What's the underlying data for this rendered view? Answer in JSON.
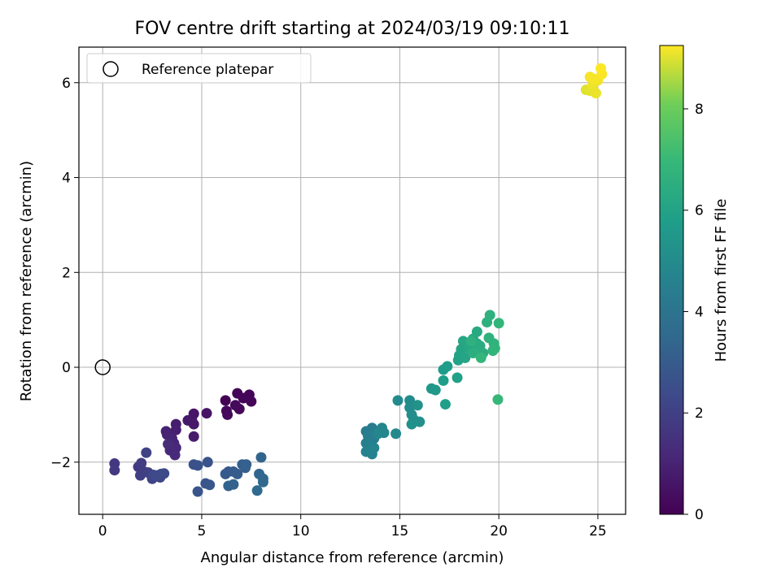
{
  "chart_data": {
    "type": "scatter",
    "title": "FOV centre drift starting at 2024/03/19 09:10:11",
    "xlabel": "Angular distance from reference (arcmin)",
    "ylabel": "Rotation from reference (arcmin)",
    "xlim": [
      -1.2,
      26.4
    ],
    "ylim": [
      -3.1,
      6.75
    ],
    "xticks": [
      0,
      5,
      10,
      15,
      20,
      25
    ],
    "yticks": [
      -2,
      0,
      2,
      4,
      6
    ],
    "xtick_labels": [
      "0",
      "5",
      "10",
      "15",
      "20",
      "25"
    ],
    "ytick_labels": [
      "−2",
      "0",
      "2",
      "4",
      "6"
    ],
    "grid": true,
    "legend": {
      "placement": "top-left",
      "label": "Reference platepar"
    },
    "reference_point": {
      "x": 0,
      "y": 0
    },
    "colorbar": {
      "label": "Hours from first FF file",
      "colormap": "viridis",
      "range": [
        0,
        9.25
      ],
      "ticks": [
        0,
        2,
        4,
        6,
        8
      ],
      "tick_labels": [
        "0",
        "2",
        "4",
        "6",
        "8"
      ]
    },
    "points": [
      {
        "x": 6.2,
        "y": -0.7,
        "t": 0.0
      },
      {
        "x": 6.8,
        "y": -0.55,
        "t": 0.05
      },
      {
        "x": 7.1,
        "y": -0.65,
        "t": 0.1
      },
      {
        "x": 7.4,
        "y": -0.58,
        "t": 0.12
      },
      {
        "x": 7.5,
        "y": -0.72,
        "t": 0.15
      },
      {
        "x": 6.9,
        "y": -0.88,
        "t": 0.2
      },
      {
        "x": 6.25,
        "y": -0.92,
        "t": 0.22
      },
      {
        "x": 6.3,
        "y": -1.0,
        "t": 0.25
      },
      {
        "x": 6.7,
        "y": -0.8,
        "t": 0.27
      },
      {
        "x": 5.25,
        "y": -0.97,
        "t": 0.55
      },
      {
        "x": 4.6,
        "y": -0.98,
        "t": 0.6
      },
      {
        "x": 4.5,
        "y": -1.1,
        "t": 0.65
      },
      {
        "x": 4.3,
        "y": -1.12,
        "t": 0.7
      },
      {
        "x": 4.6,
        "y": -1.2,
        "t": 0.72
      },
      {
        "x": 4.6,
        "y": -1.46,
        "t": 0.8
      },
      {
        "x": 3.7,
        "y": -1.2,
        "t": 0.85
      },
      {
        "x": 3.7,
        "y": -1.32,
        "t": 0.9
      },
      {
        "x": 3.2,
        "y": -1.35,
        "t": 0.95
      },
      {
        "x": 3.25,
        "y": -1.42,
        "t": 1.0
      },
      {
        "x": 3.5,
        "y": -1.5,
        "t": 1.05
      },
      {
        "x": 3.6,
        "y": -1.6,
        "t": 1.1
      },
      {
        "x": 3.4,
        "y": -1.75,
        "t": 1.15
      },
      {
        "x": 3.7,
        "y": -1.7,
        "t": 1.2
      },
      {
        "x": 3.65,
        "y": -1.85,
        "t": 1.25
      },
      {
        "x": 3.3,
        "y": -1.62,
        "t": 1.3
      },
      {
        "x": 0.6,
        "y": -2.03,
        "t": 1.7
      },
      {
        "x": 0.6,
        "y": -2.17,
        "t": 1.75
      },
      {
        "x": 1.8,
        "y": -2.1,
        "t": 1.8
      },
      {
        "x": 1.95,
        "y": -2.02,
        "t": 1.85
      },
      {
        "x": 2.1,
        "y": -2.2,
        "t": 1.9
      },
      {
        "x": 1.9,
        "y": -2.28,
        "t": 1.95
      },
      {
        "x": 2.3,
        "y": -2.22,
        "t": 2.0
      },
      {
        "x": 2.2,
        "y": -1.8,
        "t": 2.05
      },
      {
        "x": 2.5,
        "y": -2.35,
        "t": 2.1
      },
      {
        "x": 2.7,
        "y": -2.3,
        "t": 2.15
      },
      {
        "x": 2.9,
        "y": -2.32,
        "t": 2.2
      },
      {
        "x": 2.95,
        "y": -2.25,
        "t": 2.25
      },
      {
        "x": 2.55,
        "y": -2.27,
        "t": 2.3
      },
      {
        "x": 2.75,
        "y": -2.28,
        "t": 2.35
      },
      {
        "x": 3.1,
        "y": -2.24,
        "t": 2.4
      },
      {
        "x": 4.6,
        "y": -2.05,
        "t": 2.6
      },
      {
        "x": 4.8,
        "y": -2.07,
        "t": 2.65
      },
      {
        "x": 5.3,
        "y": -2.0,
        "t": 2.7
      },
      {
        "x": 4.8,
        "y": -2.62,
        "t": 2.75
      },
      {
        "x": 5.2,
        "y": -2.45,
        "t": 2.8
      },
      {
        "x": 5.4,
        "y": -2.48,
        "t": 2.85
      },
      {
        "x": 6.2,
        "y": -2.25,
        "t": 2.9
      },
      {
        "x": 6.35,
        "y": -2.2,
        "t": 2.95
      },
      {
        "x": 6.6,
        "y": -2.2,
        "t": 3.0
      },
      {
        "x": 6.8,
        "y": -2.25,
        "t": 3.05
      },
      {
        "x": 7.05,
        "y": -2.05,
        "t": 3.1
      },
      {
        "x": 7.2,
        "y": -2.12,
        "t": 3.15
      },
      {
        "x": 7.25,
        "y": -2.05,
        "t": 3.2
      },
      {
        "x": 6.35,
        "y": -2.5,
        "t": 3.25
      },
      {
        "x": 6.6,
        "y": -2.47,
        "t": 3.3
      },
      {
        "x": 8.0,
        "y": -1.9,
        "t": 3.35
      },
      {
        "x": 7.9,
        "y": -2.25,
        "t": 3.4
      },
      {
        "x": 8.1,
        "y": -2.35,
        "t": 3.45
      },
      {
        "x": 8.1,
        "y": -2.42,
        "t": 3.5
      },
      {
        "x": 7.8,
        "y": -2.6,
        "t": 3.55
      },
      {
        "x": 13.3,
        "y": -1.35,
        "t": 4.3
      },
      {
        "x": 13.6,
        "y": -1.28,
        "t": 4.35
      },
      {
        "x": 13.4,
        "y": -1.45,
        "t": 4.4
      },
      {
        "x": 13.7,
        "y": -1.5,
        "t": 4.45
      },
      {
        "x": 13.3,
        "y": -1.6,
        "t": 4.5
      },
      {
        "x": 13.5,
        "y": -1.65,
        "t": 4.55
      },
      {
        "x": 13.3,
        "y": -1.78,
        "t": 4.6
      },
      {
        "x": 13.6,
        "y": -1.83,
        "t": 4.65
      },
      {
        "x": 13.7,
        "y": -1.7,
        "t": 4.7
      },
      {
        "x": 14.1,
        "y": -1.28,
        "t": 4.75
      },
      {
        "x": 14.2,
        "y": -1.38,
        "t": 4.8
      },
      {
        "x": 13.9,
        "y": -1.4,
        "t": 4.85
      },
      {
        "x": 14.8,
        "y": -1.4,
        "t": 4.9
      },
      {
        "x": 14.9,
        "y": -0.7,
        "t": 4.95
      },
      {
        "x": 15.5,
        "y": -0.7,
        "t": 5.0
      },
      {
        "x": 15.5,
        "y": -0.85,
        "t": 5.05
      },
      {
        "x": 15.6,
        "y": -1.0,
        "t": 5.1
      },
      {
        "x": 15.7,
        "y": -1.1,
        "t": 5.15
      },
      {
        "x": 16.0,
        "y": -1.15,
        "t": 5.2
      },
      {
        "x": 15.6,
        "y": -1.2,
        "t": 5.25
      },
      {
        "x": 15.9,
        "y": -0.8,
        "t": 5.3
      },
      {
        "x": 16.6,
        "y": -0.45,
        "t": 5.5
      },
      {
        "x": 16.8,
        "y": -0.48,
        "t": 5.55
      },
      {
        "x": 17.2,
        "y": -0.05,
        "t": 5.7
      },
      {
        "x": 17.4,
        "y": 0.02,
        "t": 5.75
      },
      {
        "x": 17.2,
        "y": -0.28,
        "t": 5.8
      },
      {
        "x": 17.3,
        "y": -0.78,
        "t": 5.85
      },
      {
        "x": 17.9,
        "y": -0.22,
        "t": 5.9
      },
      {
        "x": 17.95,
        "y": 0.15,
        "t": 5.95
      },
      {
        "x": 18.0,
        "y": 0.25,
        "t": 6.0
      },
      {
        "x": 18.1,
        "y": 0.38,
        "t": 6.05
      },
      {
        "x": 18.3,
        "y": 0.2,
        "t": 6.1
      },
      {
        "x": 18.2,
        "y": 0.55,
        "t": 6.15
      },
      {
        "x": 18.5,
        "y": 0.4,
        "t": 6.2
      },
      {
        "x": 18.7,
        "y": 0.6,
        "t": 6.25
      },
      {
        "x": 18.9,
        "y": 0.75,
        "t": 6.3
      },
      {
        "x": 18.9,
        "y": 0.5,
        "t": 6.35
      },
      {
        "x": 19.05,
        "y": 0.45,
        "t": 6.4
      },
      {
        "x": 19.2,
        "y": 0.3,
        "t": 6.45
      },
      {
        "x": 18.7,
        "y": 0.3,
        "t": 6.5
      },
      {
        "x": 19.4,
        "y": 0.95,
        "t": 6.55
      },
      {
        "x": 19.55,
        "y": 1.1,
        "t": 6.6
      },
      {
        "x": 19.5,
        "y": 0.62,
        "t": 6.65
      },
      {
        "x": 19.75,
        "y": 0.5,
        "t": 6.7
      },
      {
        "x": 19.8,
        "y": 0.4,
        "t": 6.75
      },
      {
        "x": 19.7,
        "y": 0.35,
        "t": 6.8
      },
      {
        "x": 20.0,
        "y": 0.93,
        "t": 6.85
      },
      {
        "x": 19.1,
        "y": 0.2,
        "t": 6.9
      },
      {
        "x": 19.95,
        "y": -0.68,
        "t": 6.95
      },
      {
        "x": 18.6,
        "y": 0.55,
        "t": 6.6
      },
      {
        "x": 24.4,
        "y": 5.85,
        "t": 9.0
      },
      {
        "x": 24.6,
        "y": 5.83,
        "t": 9.05
      },
      {
        "x": 24.9,
        "y": 5.78,
        "t": 9.1
      },
      {
        "x": 24.75,
        "y": 5.95,
        "t": 9.12
      },
      {
        "x": 25.0,
        "y": 6.05,
        "t": 9.15
      },
      {
        "x": 24.6,
        "y": 6.12,
        "t": 9.18
      },
      {
        "x": 24.8,
        "y": 6.08,
        "t": 9.2
      },
      {
        "x": 25.2,
        "y": 6.18,
        "t": 9.22
      },
      {
        "x": 25.15,
        "y": 6.3,
        "t": 9.25
      }
    ]
  }
}
